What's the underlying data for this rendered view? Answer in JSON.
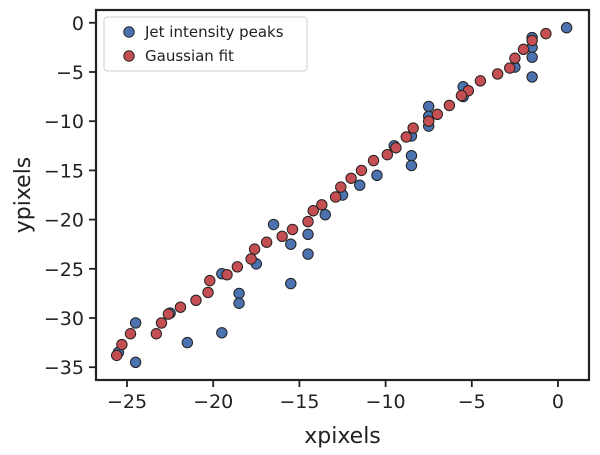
{
  "chart_data": {
    "type": "scatter",
    "title": "",
    "xlabel": "xpixels",
    "ylabel": "ypixels",
    "xlim": [
      -26.8,
      1.8
    ],
    "ylim": [
      -36.3,
      1.3
    ],
    "xticks": [
      -25,
      -20,
      -15,
      -10,
      -5,
      0
    ],
    "yticks": [
      0,
      -5,
      -10,
      -15,
      -20,
      -25,
      -30,
      -35
    ],
    "xtick_labels": [
      "−25",
      "−20",
      "−15",
      "−10",
      "−5",
      "0"
    ],
    "ytick_labels": [
      "0",
      "−5",
      "−10",
      "−15",
      "−20",
      "−25",
      "−30",
      "−35"
    ],
    "grid": false,
    "legend": {
      "placement": "top-left"
    },
    "series": [
      {
        "name": "Jet intensity peaks",
        "color": "#4c72b0",
        "points": [
          [
            0.5,
            -0.5
          ],
          [
            -1.5,
            -1.5
          ],
          [
            -1.5,
            -2.5
          ],
          [
            -1.5,
            -3.5
          ],
          [
            -1.5,
            -5.5
          ],
          [
            -2.5,
            -4.5
          ],
          [
            -5.5,
            -6.5
          ],
          [
            -5.5,
            -7.5
          ],
          [
            -7.5,
            -8.5
          ],
          [
            -7.5,
            -9.5
          ],
          [
            -7.5,
            -10.5
          ],
          [
            -8.5,
            -11.5
          ],
          [
            -8.5,
            -13.5
          ],
          [
            -8.5,
            -14.5
          ],
          [
            -9.5,
            -12.5
          ],
          [
            -10.5,
            -15.5
          ],
          [
            -11.5,
            -16.5
          ],
          [
            -12.5,
            -17.5
          ],
          [
            -13.5,
            -19.5
          ],
          [
            -14.5,
            -21.5
          ],
          [
            -14.5,
            -23.5
          ],
          [
            -15.5,
            -22.5
          ],
          [
            -15.5,
            -26.5
          ],
          [
            -16.5,
            -20.5
          ],
          [
            -17.5,
            -24.5
          ],
          [
            -18.5,
            -27.5
          ],
          [
            -18.5,
            -28.5
          ],
          [
            -19.5,
            -25.5
          ],
          [
            -19.5,
            -31.5
          ],
          [
            -21.5,
            -32.5
          ],
          [
            -22.5,
            -29.5
          ],
          [
            -24.5,
            -30.5
          ],
          [
            -24.5,
            -34.5
          ],
          [
            -25.5,
            -33.5
          ]
        ]
      },
      {
        "name": "Gaussian fit",
        "color": "#c44e52",
        "points": [
          [
            -0.7,
            -1.1
          ],
          [
            -1.5,
            -1.8
          ],
          [
            -2.0,
            -2.7
          ],
          [
            -2.5,
            -3.6
          ],
          [
            -2.8,
            -4.6
          ],
          [
            -3.5,
            -5.2
          ],
          [
            -4.5,
            -5.9
          ],
          [
            -5.2,
            -6.9
          ],
          [
            -5.6,
            -7.4
          ],
          [
            -6.3,
            -8.4
          ],
          [
            -7.0,
            -9.3
          ],
          [
            -7.5,
            -10.0
          ],
          [
            -8.4,
            -10.7
          ],
          [
            -8.8,
            -11.6
          ],
          [
            -9.4,
            -12.7
          ],
          [
            -9.9,
            -13.4
          ],
          [
            -10.7,
            -14.0
          ],
          [
            -11.4,
            -15.0
          ],
          [
            -12.0,
            -15.8
          ],
          [
            -12.6,
            -16.7
          ],
          [
            -12.9,
            -17.7
          ],
          [
            -13.7,
            -18.5
          ],
          [
            -14.2,
            -19.1
          ],
          [
            -14.5,
            -20.2
          ],
          [
            -15.4,
            -21.0
          ],
          [
            -16.0,
            -21.7
          ],
          [
            -16.9,
            -22.3
          ],
          [
            -17.6,
            -23.0
          ],
          [
            -17.8,
            -24.0
          ],
          [
            -18.6,
            -24.8
          ],
          [
            -19.2,
            -25.6
          ],
          [
            -20.2,
            -26.2
          ],
          [
            -20.3,
            -27.4
          ],
          [
            -21.0,
            -28.2
          ],
          [
            -21.9,
            -28.9
          ],
          [
            -22.6,
            -29.6
          ],
          [
            -23.0,
            -30.5
          ],
          [
            -23.3,
            -31.6
          ],
          [
            -24.8,
            -31.6
          ],
          [
            -25.3,
            -32.7
          ],
          [
            -25.6,
            -33.8
          ]
        ]
      }
    ]
  }
}
